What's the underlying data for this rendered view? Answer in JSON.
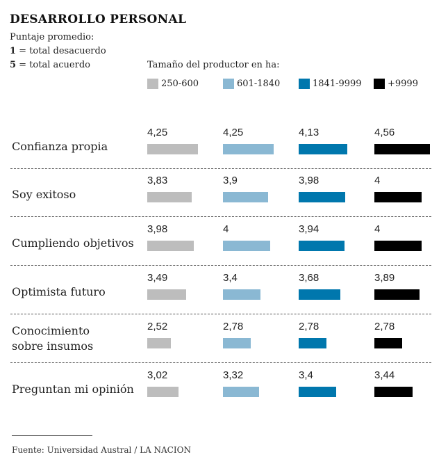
{
  "header": {
    "title": "DESARROLLO PERSONAL",
    "subtitle": "Puntaje promedio:",
    "scale_low_num": "1",
    "scale_low_text": " = total desacuerdo",
    "scale_high_num": "5",
    "scale_high_text": " = total acuerdo"
  },
  "legend": {
    "title": "Tamaño del productor en ha:",
    "items": [
      {
        "label": "250-600",
        "color": "#bdbdbd"
      },
      {
        "label": "601-1840",
        "color": "#8ab8d3"
      },
      {
        "label": "1841-9999",
        "color": "#0077ad"
      },
      {
        "label": "+9999",
        "color": "#000000"
      }
    ]
  },
  "footer": {
    "source": "Fuente:  Universidad Austral / LA NACION"
  },
  "chart_data": {
    "type": "bar",
    "orientation": "horizontal-grouped",
    "title": "DESARROLLO PERSONAL",
    "subtitle": "Puntaje promedio: 1 = total desacuerdo, 5 = total acuerdo",
    "legend_title": "Tamaño del productor en ha:",
    "legend_position": "top",
    "categories": [
      [
        "Confianza propia"
      ],
      [
        "Soy exitoso"
      ],
      [
        "Cumpliendo objetivos"
      ],
      [
        "Optimista futuro"
      ],
      [
        "Conocimiento",
        "sobre insumos"
      ],
      [
        "Preguntan mi opinión"
      ]
    ],
    "series": [
      {
        "name": "250-600",
        "color": "#bdbdbd",
        "values": [
          4.25,
          3.83,
          3.98,
          3.49,
          2.52,
          3.02
        ],
        "labels": [
          "4,25",
          "3,83",
          "3,98",
          "3,49",
          "2,52",
          "3,02"
        ]
      },
      {
        "name": "601-1840",
        "color": "#8ab8d3",
        "values": [
          4.25,
          3.9,
          4,
          3.4,
          2.78,
          3.32
        ],
        "labels": [
          "4,25",
          "3,9",
          "4",
          "3,4",
          "2,78",
          "3,32"
        ]
      },
      {
        "name": "1841-9999",
        "color": "#0077ad",
        "values": [
          4.13,
          3.98,
          3.94,
          3.68,
          2.78,
          3.4
        ],
        "labels": [
          "4,13",
          "3,98",
          "3,94",
          "3,68",
          "2,78",
          "3,4"
        ]
      },
      {
        "name": "+9999",
        "color": "#000000",
        "values": [
          4.56,
          4,
          4,
          3.89,
          2.78,
          3.44
        ],
        "labels": [
          "4,56",
          "4",
          "4",
          "3,89",
          "2,78",
          "3,44"
        ]
      }
    ],
    "value_range": [
      1,
      5
    ],
    "xlabel": "",
    "ylabel": "",
    "grid": false,
    "source": "Fuente:  Universidad Austral / LA NACION"
  }
}
